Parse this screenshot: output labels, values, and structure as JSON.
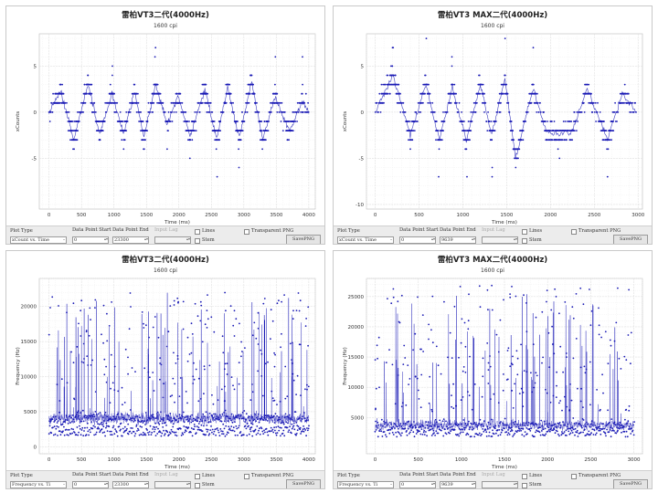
{
  "panels": [
    {
      "controls": {
        "plot_type_label": "Plot Type",
        "plot_type_value": "xCount vs. Time",
        "start_label": "Data Point Start",
        "start_value": "0",
        "end_label": "Data Point End",
        "end_value": "23300",
        "lag_label": "Input Lag",
        "lines_label": "Lines",
        "stem_label": "Stem",
        "transparent_label": "Transparent PNG",
        "save_label": "SavePNG"
      },
      "chart_data": {
        "type": "scatter",
        "title": "雷柏VT3二代(4000Hz)",
        "subtitle": "1600 cpi",
        "xlabel": "Time (ms)",
        "ylabel": "xCounts",
        "xlim": [
          -150,
          4100
        ],
        "ylim": [
          -10.5,
          8.5
        ],
        "xticks": [
          0,
          500,
          1000,
          1500,
          2000,
          2500,
          3000,
          3500,
          4000
        ],
        "yticks": [
          -5,
          0,
          5
        ],
        "grid": true,
        "color": "#1a1ab5",
        "series": [
          {
            "pattern": "triangle-wave",
            "peaks_x": [
              180,
              600,
              970,
              1320,
              1640,
              1990,
              2400,
              2750,
              3120,
              3480,
              3900
            ],
            "peaks_y": [
              2.3,
              3.0,
              2.0,
              2.2,
              3.0,
              1.7,
              2.5,
              2.7,
              3.3,
              1.7,
              1.2
            ],
            "troughs_x": [
              380,
              780,
              1150,
              1460,
              1820,
              2170,
              2580,
              2930,
              3290,
              3700
            ],
            "troughs_y": [
              -3.0,
              -2.4,
              -2.3,
              -2.7,
              -1.2,
              -2.6,
              -3.0,
              -2.8,
              -3.0,
              -2.0
            ],
            "start": [
              0,
              0
            ],
            "end": [
              4000,
              0
            ],
            "outliers_max": 7,
            "outliers_min": -8
          }
        ]
      }
    },
    {
      "controls": {
        "plot_type_label": "Plot Type",
        "plot_type_value": "xCount vs. Time",
        "start_label": "Data Point Start",
        "start_value": "0",
        "end_label": "Data Point End",
        "end_value": "9639",
        "lag_label": "Input Lag",
        "lines_label": "Lines",
        "stem_label": "Stem",
        "transparent_label": "Transparent PNG",
        "save_label": "SavePNG"
      },
      "chart_data": {
        "type": "scatter",
        "title": "雷柏VT3  MAX二代(4000Hz)",
        "subtitle": "1600 cpi",
        "xlabel": "Time (ms)",
        "ylabel": "xCounts",
        "xlim": [
          -100,
          3050
        ],
        "ylim": [
          -10.5,
          8.5
        ],
        "xticks": [
          0,
          500,
          1000,
          1500,
          2000,
          2500,
          3000
        ],
        "yticks": [
          -10,
          -5,
          0,
          5
        ],
        "grid": true,
        "color": "#1a1ab5",
        "series": [
          {
            "pattern": "triangle-wave",
            "peaks_x": [
              200,
              580,
              880,
              1200,
              1480,
              1800,
              2420,
              2820
            ],
            "peaks_y": [
              4.0,
              3.0,
              2.6,
              3.0,
              3.6,
              2.6,
              2.6,
              2.0
            ],
            "troughs_x": [
              400,
              730,
              1040,
              1330,
              1600,
              1950,
              2100,
              2250,
              2650
            ],
            "troughs_y": [
              -2.5,
              -3.0,
              -3.0,
              -2.5,
              -5.0,
              -2.0,
              -2.3,
              -2.0,
              -3.0
            ],
            "start": [
              0,
              0
            ],
            "end": [
              2980,
              0
            ],
            "outliers_max": 8,
            "outliers_min": -9
          }
        ]
      }
    },
    {
      "controls": {
        "plot_type_label": "Plot Type",
        "plot_type_value": "Frequency vs. Ti",
        "start_label": "Data Point Start",
        "start_value": "0",
        "end_label": "Data Point End",
        "end_value": "23300",
        "lag_label": "Input Lag",
        "lines_label": "Lines",
        "stem_label": "Stem",
        "transparent_label": "Transparent PNG",
        "save_label": "SavePNG"
      },
      "chart_data": {
        "type": "scatter",
        "title": "雷柏VT3二代(4000Hz)",
        "subtitle": "1600 cpi",
        "xlabel": "Time (ms)",
        "ylabel": "Frequency (Hz)",
        "xlim": [
          -150,
          4100
        ],
        "ylim": [
          -1000,
          24000
        ],
        "xticks": [
          0,
          500,
          1000,
          1500,
          2000,
          2500,
          3000,
          3500,
          4000
        ],
        "yticks": [
          0,
          5000,
          10000,
          15000,
          20000
        ],
        "grid": true,
        "color": "#1a1ab5",
        "series": [
          {
            "pattern": "frequency-scatter",
            "baseline": 4000,
            "band": [
              1500,
              6000
            ],
            "spread_max": 22000,
            "x_max": 4000
          }
        ]
      }
    },
    {
      "controls": {
        "plot_type_label": "Plot Type",
        "plot_type_value": "Frequency vs. Ti",
        "start_label": "Data Point Start",
        "start_value": "0",
        "end_label": "Data Point End",
        "end_value": "9639",
        "lag_label": "Input Lag",
        "lines_label": "Lines",
        "stem_label": "Stem",
        "transparent_label": "Transparent PNG",
        "save_label": "SavePNG"
      },
      "chart_data": {
        "type": "scatter",
        "title": "雷柏VT3  MAX二代(4000Hz)",
        "subtitle": "1600 cpi",
        "xlabel": "Time (ms)",
        "ylabel": "Frequency (Hz)",
        "xlim": [
          -100,
          3100
        ],
        "ylim": [
          -1000,
          28000
        ],
        "xticks": [
          0,
          500,
          1000,
          1500,
          2000,
          2500,
          3000
        ],
        "yticks": [
          5000,
          10000,
          15000,
          20000,
          25000
        ],
        "grid": true,
        "color": "#1a1ab5",
        "series": [
          {
            "pattern": "frequency-scatter",
            "baseline": 3700,
            "band": [
              1800,
              6000
            ],
            "spread_max": 27000,
            "x_max": 3000
          }
        ]
      }
    }
  ]
}
